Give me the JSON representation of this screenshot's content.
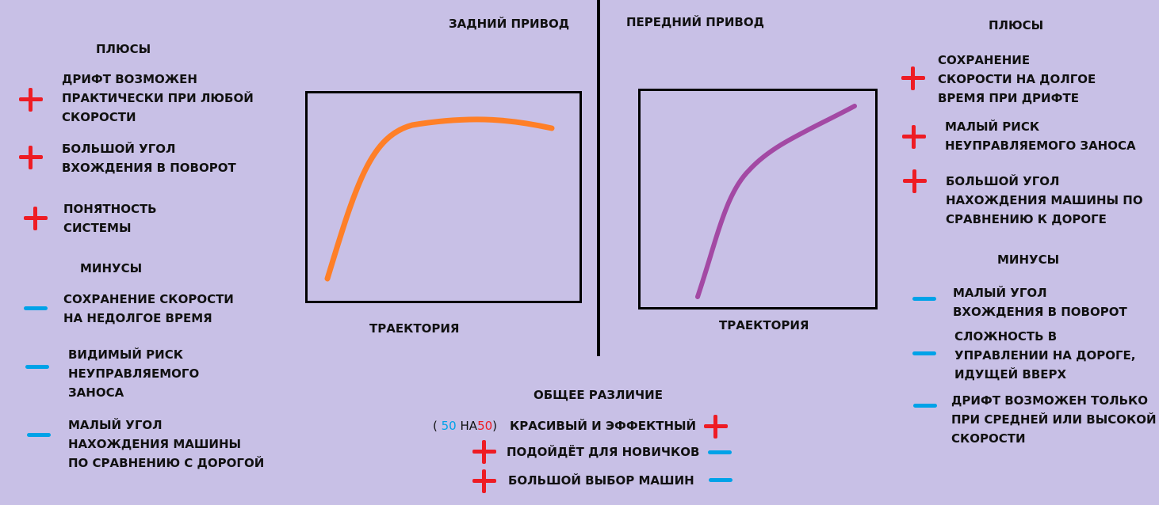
{
  "rear": {
    "title": "ЗАДНИЙ ПРИВОД",
    "trajectory_label": "ТРАЕКТОРИЯ",
    "pros_title": "ПЛЮСЫ",
    "pros": [
      [
        "ДРИФТ ВОЗМОЖЕН",
        "ПРАКТИЧЕСКИ ПРИ ЛЮБОЙ",
        "СКОРОСТИ"
      ],
      [
        "БОЛЬШОЙ УГОЛ",
        "ВХОЖДЕНИЯ В ПОВОРОТ"
      ],
      [
        "ПОНЯТНОСТЬ",
        "СИСТЕМЫ"
      ]
    ],
    "cons_title": "МИНУСЫ",
    "cons": [
      [
        "СОХРАНЕНИЕ СКОРОСТИ",
        "НА НЕДОЛГОЕ ВРЕМЯ"
      ],
      [
        "ВИДИМЫЙ РИСК",
        "НЕУПРАВЛЯЕМОГО",
        "ЗАНОСА"
      ],
      [
        "МАЛЫЙ УГОЛ",
        "НАХОЖДЕНИЯ МАШИНЫ",
        "ПО СРАВНЕНИЮ С ДОРОГОЙ"
      ]
    ],
    "curve_color": "#ff7f27"
  },
  "front": {
    "title": "ПЕРЕДНИЙ ПРИВОД",
    "trajectory_label": "ТРАЕКТОРИЯ",
    "pros_title": "ПЛЮСЫ",
    "pros": [
      [
        "СОХРАНЕНИЕ",
        "СКОРОСТИ НА ДОЛГОЕ",
        "ВРЕМЯ ПРИ ДРИФТЕ"
      ],
      [
        "МАЛЫЙ РИСК",
        "НЕУПРАВЛЯЕМОГО ЗАНОСА"
      ],
      [
        "БОЛЬШОЙ УГОЛ",
        "НАХОЖДЕНИЯ МАШИНЫ ПО",
        "СРАВНЕНИЮ К ДОРОГЕ"
      ]
    ],
    "cons_title": "МИНУСЫ",
    "cons": [
      [
        "МАЛЫЙ УГОЛ",
        "ВХОЖДЕНИЯ В ПОВОРОТ"
      ],
      [
        "СЛОЖНОСТЬ В",
        "УПРАВЛЕНИИ НА ДОРОГЕ,",
        "ИДУЩЕЙ ВВЕРХ"
      ],
      [
        "ДРИФТ ВОЗМОЖЕН ТОЛЬКО",
        "ПРИ СРЕДНЕЙ ИЛИ ВЫСОКОЙ",
        "СКОРОСТИ"
      ]
    ],
    "curve_color": "#a349a4"
  },
  "common": {
    "title": "ОБЩЕЕ РАЗЛИЧИЕ",
    "ratio_open": "(",
    "ratio_left": "50",
    "ratio_mid": "НА",
    "ratio_right": "50",
    "ratio_close": ")",
    "items": [
      "КРАСИВЫЙ И ЭФФЕКТНЫЙ",
      "ПОДОЙДЁТ ДЛЯ НОВИЧКОВ",
      "БОЛЬШОЙ ВЫБОР МАШИН"
    ]
  },
  "colors": {
    "background": "#c8c0e6",
    "plus": "#ee1c24",
    "minus": "#00a2e8"
  }
}
